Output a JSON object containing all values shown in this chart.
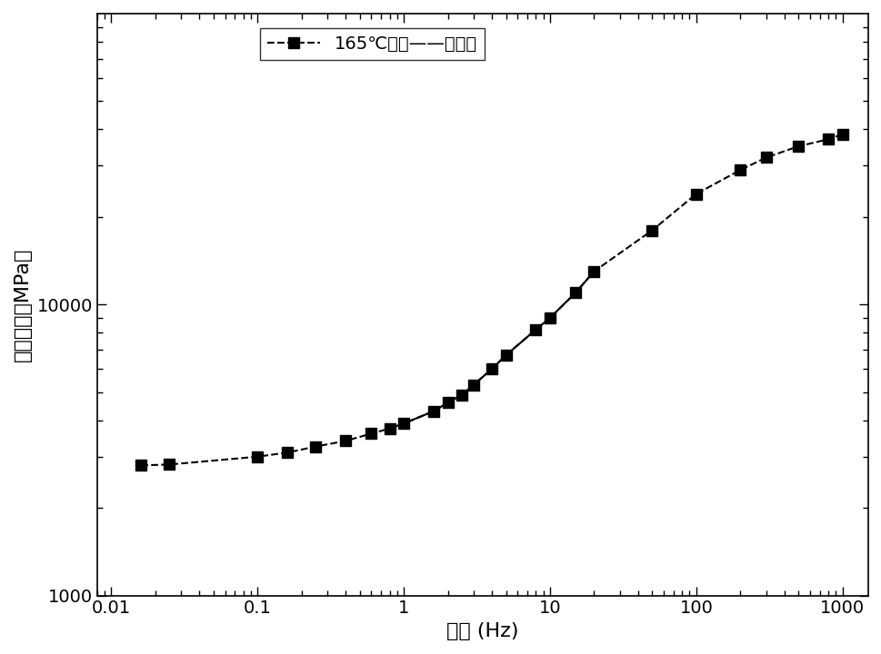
{
  "x": [
    0.016,
    0.025,
    0.1,
    0.16,
    0.25,
    0.4,
    0.6,
    0.8,
    1.0,
    1.6,
    2.0,
    2.5,
    3.0,
    4.0,
    5.0,
    8.0,
    10.0,
    15.0,
    20.0,
    50.0,
    100.0,
    200.0,
    300.0,
    500.0,
    800.0,
    1000.0
  ],
  "y_dashed": [
    2800,
    2820,
    3000,
    3100,
    3250,
    3400,
    3600,
    3750,
    3900,
    4300,
    4600,
    4900,
    5300,
    6000,
    6700,
    8200,
    9000,
    11000,
    13000,
    18000,
    24000,
    29000,
    32000,
    35000,
    37000,
    38500
  ],
  "x_solid": [
    0.8,
    1.0,
    1.6,
    2.0,
    2.5,
    3.0,
    4.0,
    5.0,
    8.0,
    10.0,
    15.0,
    20.0
  ],
  "y_solid": [
    3750,
    3900,
    4300,
    4600,
    4900,
    5300,
    6000,
    6700,
    8200,
    9000,
    11000,
    13000
  ],
  "xlabel": "频率 (Hz)",
  "ylabel": "动态模量（MPa）",
  "legend_label": "165℃拌和——主曲线",
  "xlim": [
    0.008,
    1500
  ],
  "ylim": [
    1000,
    100000
  ],
  "line_color": "#000000",
  "marker": "s",
  "marker_color": "#000000",
  "marker_size": 8,
  "background_color": "#ffffff",
  "axis_fontsize": 16,
  "tick_fontsize": 14,
  "legend_fontsize": 14
}
